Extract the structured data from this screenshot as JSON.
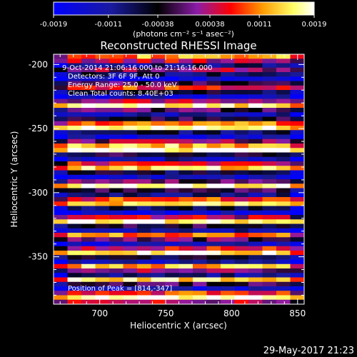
{
  "colorbar": {
    "ticks": [
      "-0.0019",
      "-0.0011",
      "-0.00038",
      "0.00038",
      "0.0011",
      "0.0019"
    ],
    "tick_values": [
      -0.0019,
      -0.0011,
      -0.00038,
      0.00038,
      0.0011,
      0.0019
    ],
    "range": [
      -0.0019,
      0.0019
    ],
    "unit_label": "(photons cm⁻² s⁻¹ asec⁻²)",
    "colormap": [
      "#0000ff",
      "#000000",
      "#8a1ca8",
      "#ff0000",
      "#ff9900",
      "#ffff66",
      "#ffffff"
    ]
  },
  "plot": {
    "title": "Reconstructed RHESSI Image",
    "annotations": [
      "9-Oct-2014 21:06:16.000 to 21:16:16.000",
      "Detectors: 3F 6F 9F, Att 0",
      "Energy Range: 25.0 - 50.0 keV",
      "Clean    Total counts: 8.40E+03"
    ],
    "peak_label": "Position of Peak = [814,-347]",
    "footer_date": "29-May-2017 21:23"
  },
  "chart_data": {
    "type": "heatmap",
    "title": "Reconstructed RHESSI Image",
    "xlabel": "Heliocentric X (arcsec)",
    "ylabel": "Heliocentric Y (arcsec)",
    "xlim": [
      665,
      855
    ],
    "ylim": [
      -387,
      -192
    ],
    "xticks": [
      700,
      750,
      800,
      850
    ],
    "yticks": [
      -200,
      -250,
      -300,
      -350
    ],
    "band_count": 56,
    "band_levels": [
      0.8,
      0.62,
      0.25,
      0.55,
      0.3,
      0.1,
      0.45,
      0.7,
      0.35,
      0.15,
      0.6,
      0.92,
      0.5,
      0.2,
      0.4,
      0.75,
      0.95,
      0.3,
      0.12,
      0.55,
      0.85,
      0.98,
      0.4,
      0.2,
      0.65,
      0.88,
      0.35,
      0.15,
      0.5,
      0.97,
      0.45,
      0.25,
      0.7,
      0.9,
      0.3,
      0.1,
      0.6,
      0.95,
      0.4,
      0.2,
      0.8,
      0.5,
      0.15,
      0.65,
      0.92,
      0.35,
      0.2,
      0.85,
      0.55,
      0.25,
      0.9,
      0.45,
      0.15,
      0.7,
      0.99,
      0.6
    ],
    "peak": [
      814,
      -347
    ]
  }
}
